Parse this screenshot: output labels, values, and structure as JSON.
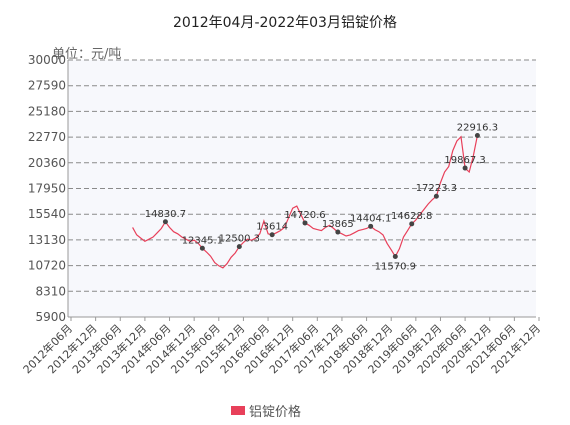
{
  "chart_data": {
    "type": "line",
    "title": "2012年04月-2022年03月铝锭价格",
    "ylabel": "单位：元/吨",
    "ylim": [
      5900,
      30000
    ],
    "y_ticks": [
      "30000",
      "27590",
      "25180",
      "22770",
      "20360",
      "17950",
      "15540",
      "13130",
      "10720",
      "8310",
      "5900"
    ],
    "x_ticks": [
      "2012年06月",
      "2012年12月",
      "2013年06月",
      "2013年12月",
      "2014年06月",
      "2014年12月",
      "2015年06月",
      "2015年12月",
      "2016年06月",
      "2016年12月",
      "2017年06月",
      "2017年12月",
      "2018年06月",
      "2018年12月",
      "2019年06月",
      "2019年12月",
      "2020年06月",
      "2020年12月",
      "2021年06月",
      "2021年12月"
    ],
    "grid": true,
    "legend_position": "bottom",
    "series": [
      {
        "name": "铝锭价格",
        "color": "#e8405a",
        "start": "2013-09",
        "values": [
          14300,
          13600,
          13300,
          13000,
          13200,
          13400,
          13800,
          14200,
          14830.7,
          14300,
          13900,
          13700,
          13400,
          13200,
          13000,
          13100,
          12800,
          12345.1,
          12000,
          11600,
          11000,
          10700,
          10500,
          10900,
          11500,
          11900,
          12500.3,
          12900,
          13200,
          13100,
          13300,
          13700,
          14900,
          13700,
          13614,
          13800,
          14000,
          14300,
          15200,
          16100,
          16300,
          15500,
          14720.6,
          14500,
          14200,
          14100,
          14000,
          14300,
          14500,
          14200,
          13865,
          13700,
          13500,
          13600,
          13800,
          14000,
          14100,
          14200,
          14404.1,
          14100,
          13900,
          13600,
          12800,
          12200,
          11570.9,
          12300,
          13400,
          14000,
          14628.8,
          15000,
          15500,
          16000,
          16500,
          16900,
          17223.3,
          18500,
          19500,
          20000,
          21500,
          22400,
          22800,
          19867.3,
          19500,
          21000,
          22916.3
        ],
        "labels": [
          {
            "index": 8,
            "text": "14830.7"
          },
          {
            "index": 17,
            "text": "12345.1"
          },
          {
            "index": 26,
            "text": "12500.3"
          },
          {
            "index": 34,
            "text": "13614"
          },
          {
            "index": 42,
            "text": "14720.6"
          },
          {
            "index": 50,
            "text": "13865"
          },
          {
            "index": 58,
            "text": "14404.1"
          },
          {
            "index": 64,
            "text": "11570.9"
          },
          {
            "index": 68,
            "text": "14628.8"
          },
          {
            "index": 74,
            "text": "17223.3"
          },
          {
            "index": 81,
            "text": "19867.3"
          },
          {
            "index": 84,
            "text": "22916.3"
          }
        ]
      }
    ]
  }
}
